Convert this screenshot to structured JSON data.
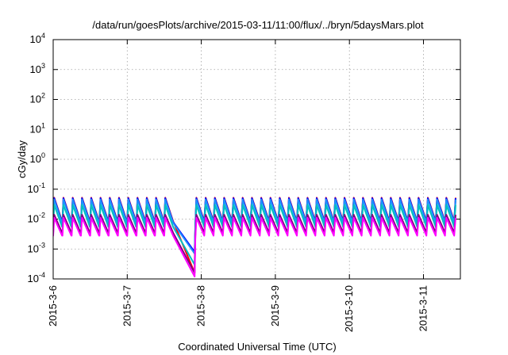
{
  "chart_data": {
    "type": "line",
    "title": "/data/run/goesPlots/archive/2015-03-11/11:00/flux/../bryn/5daysMars.plot",
    "xlabel": "Coordinated Universal Time (UTC)",
    "ylabel": "cGy/day",
    "x_ticks": [
      "2015-3-6",
      "2015-3-7",
      "2015-3-8",
      "2015-3-9",
      "2015-3-10",
      "2015-3-11"
    ],
    "y_scale": "log",
    "ylim": [
      0.0001,
      10000
    ],
    "y_ticks": [
      {
        "base": "10",
        "exp": "-4"
      },
      {
        "base": "10",
        "exp": "-3"
      },
      {
        "base": "10",
        "exp": "-2"
      },
      {
        "base": "10",
        "exp": "-1"
      },
      {
        "base": "10",
        "exp": "0"
      },
      {
        "base": "10",
        "exp": "1"
      },
      {
        "base": "10",
        "exp": "2"
      },
      {
        "base": "10",
        "exp": "3"
      },
      {
        "base": "10",
        "exp": "4"
      }
    ],
    "xlim_days": [
      0,
      5.5
    ],
    "grid": true,
    "pattern": {
      "period_days": 0.125,
      "dip_start_day": 1.63,
      "dip_end_day": 1.92
    },
    "series": [
      {
        "color": "#ff0000",
        "peak": 0.052,
        "trough": 0.0085,
        "dip_low": 0.00016
      },
      {
        "color": "#0000ff",
        "peak": 0.05,
        "trough": 0.008,
        "dip_low": 0.0008
      },
      {
        "color": "#1e90ff",
        "peak": 0.045,
        "trough": 0.0075,
        "dip_low": 0.0007
      },
      {
        "color": "#00c0c0",
        "peak": 0.03,
        "trough": 0.0055,
        "dip_low": 0.0003
      },
      {
        "color": "#800080",
        "peak": 0.014,
        "trough": 0.0035,
        "dip_low": 0.00016
      },
      {
        "color": "#ff00ff",
        "peak": 0.011,
        "trough": 0.0028,
        "dip_low": 0.00012
      }
    ]
  }
}
